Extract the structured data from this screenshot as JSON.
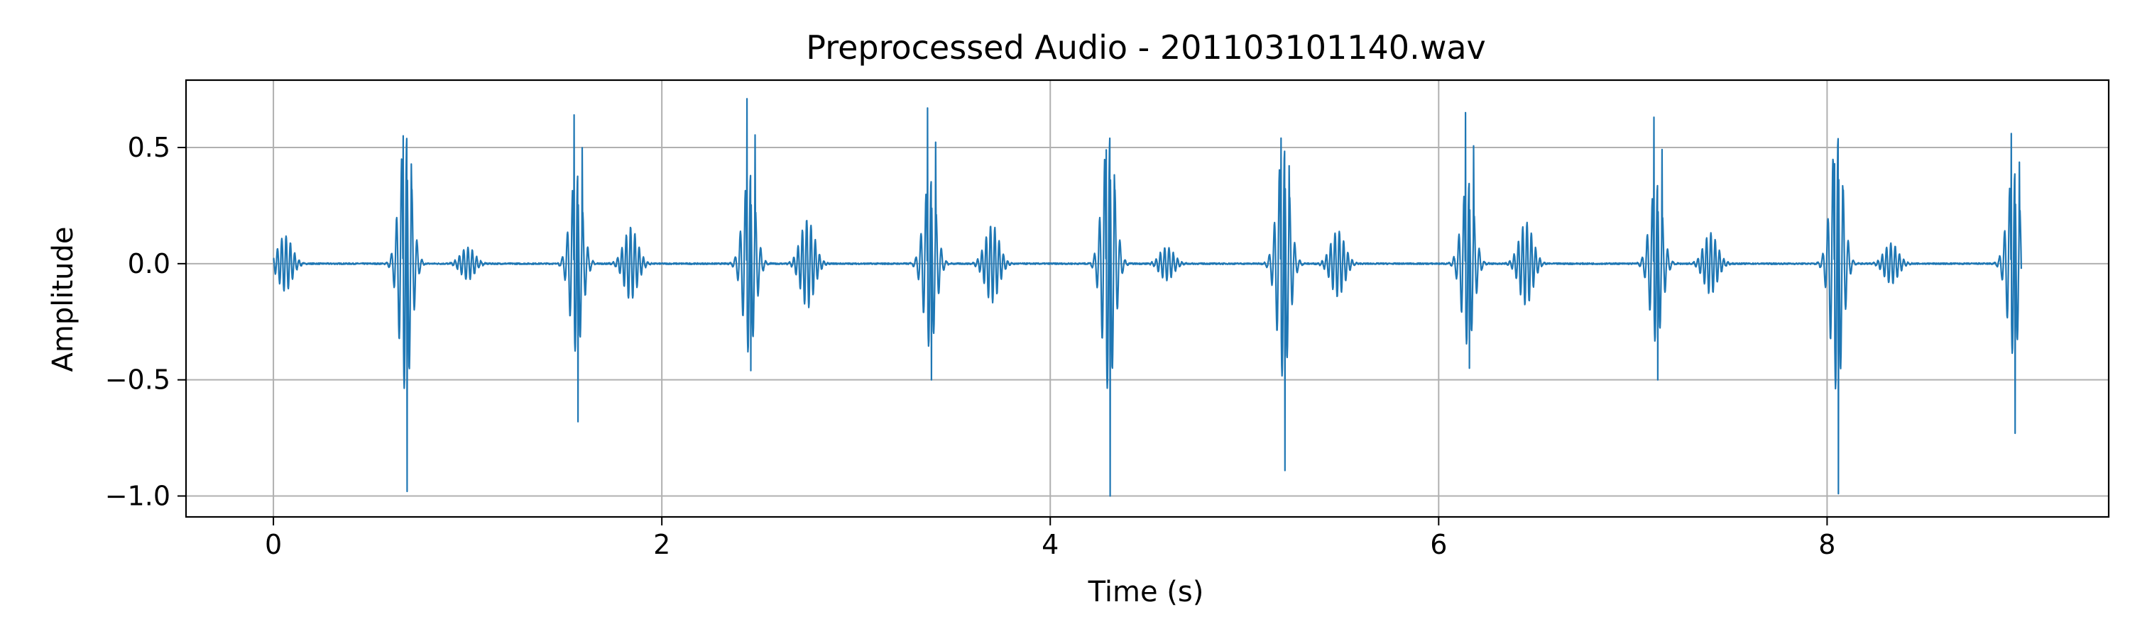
{
  "colors": {
    "series": "#1f77b4",
    "grid": "#b0b0b0",
    "axis": "#000000"
  },
  "chart_data": {
    "type": "line",
    "title": "Preprocessed Audio - 201103101140.wav",
    "xlabel": "Time (s)",
    "ylabel": "Amplitude",
    "xlim": [
      -0.45,
      9.45
    ],
    "ylim": [
      -1.09,
      0.79
    ],
    "xticks": [
      0,
      2,
      4,
      6,
      8
    ],
    "xtick_labels": [
      "0",
      "2",
      "4",
      "6",
      "8"
    ],
    "yticks": [
      0.5,
      0.0,
      -0.5,
      -1.0
    ],
    "ytick_labels": [
      "0.5",
      "0.0",
      "−0.5",
      "−1.0"
    ],
    "grid": true,
    "duration": 9.0,
    "events": [
      {
        "t": 0.06,
        "amp": 0.2,
        "kind": "minor"
      },
      {
        "t": 0.68,
        "amp": 1.0,
        "kind": "major",
        "pos": 0.55,
        "neg": -0.98
      },
      {
        "t": 1.0,
        "amp": 0.12,
        "kind": "minor"
      },
      {
        "t": 1.56,
        "amp": 0.7,
        "kind": "major",
        "pos": 0.64,
        "neg": -0.68
      },
      {
        "t": 1.84,
        "amp": 0.26,
        "kind": "minor"
      },
      {
        "t": 2.45,
        "amp": 0.7,
        "kind": "major",
        "pos": 0.71,
        "neg": -0.46
      },
      {
        "t": 2.75,
        "amp": 0.32,
        "kind": "minor"
      },
      {
        "t": 3.38,
        "amp": 0.66,
        "kind": "major",
        "pos": 0.67,
        "neg": -0.5
      },
      {
        "t": 3.7,
        "amp": 0.28,
        "kind": "minor"
      },
      {
        "t": 4.3,
        "amp": 1.0,
        "kind": "major",
        "pos": 0.49,
        "neg": -1.0
      },
      {
        "t": 4.6,
        "amp": 0.12,
        "kind": "minor"
      },
      {
        "t": 5.2,
        "amp": 0.9,
        "kind": "major",
        "pos": 0.54,
        "neg": -0.89
      },
      {
        "t": 5.48,
        "amp": 0.24,
        "kind": "minor"
      },
      {
        "t": 6.15,
        "amp": 0.64,
        "kind": "major",
        "pos": 0.65,
        "neg": -0.45
      },
      {
        "t": 6.45,
        "amp": 0.3,
        "kind": "minor"
      },
      {
        "t": 7.12,
        "amp": 0.62,
        "kind": "major",
        "pos": 0.63,
        "neg": -0.5
      },
      {
        "t": 7.4,
        "amp": 0.22,
        "kind": "minor"
      },
      {
        "t": 8.05,
        "amp": 1.0,
        "kind": "major",
        "pos": 0.43,
        "neg": -0.99
      },
      {
        "t": 8.33,
        "amp": 0.15,
        "kind": "minor"
      },
      {
        "t": 8.96,
        "amp": 0.72,
        "kind": "major",
        "pos": 0.56,
        "neg": -0.73
      }
    ]
  }
}
